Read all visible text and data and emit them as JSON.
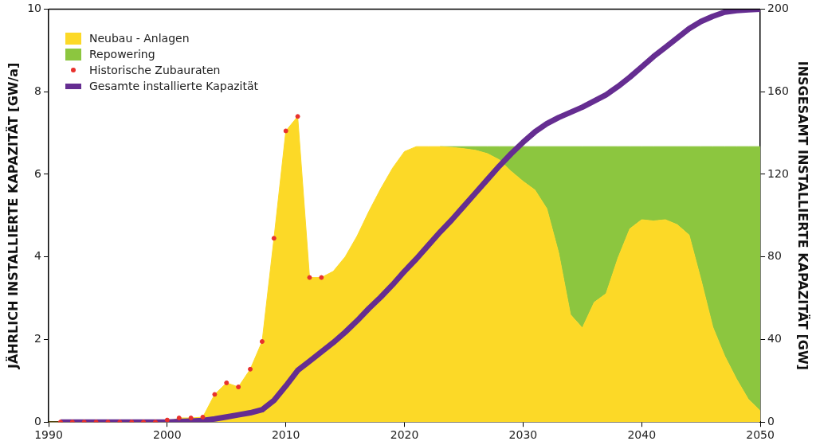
{
  "chart_data": {
    "type": "area",
    "stacked": true,
    "xlabel": null,
    "ylabel": "JÄHRLICH INSTALLIERTE KAPAZITÄT [GW/a]",
    "y2label": "INSGESAMT INSTALLIERTE KAPAZITÄT [GW]",
    "x": [
      1990,
      1991,
      1992,
      1993,
      1994,
      1995,
      1996,
      1997,
      1998,
      1999,
      2000,
      2001,
      2002,
      2003,
      2004,
      2005,
      2006,
      2007,
      2008,
      2009,
      2010,
      2011,
      2012,
      2013,
      2014,
      2015,
      2016,
      2017,
      2018,
      2019,
      2020,
      2021,
      2022,
      2023,
      2024,
      2025,
      2026,
      2027,
      2028,
      2029,
      2030,
      2031,
      2032,
      2033,
      2034,
      2035,
      2036,
      2037,
      2038,
      2039,
      2040,
      2041,
      2042,
      2043,
      2044,
      2045,
      2046,
      2047,
      2048,
      2049,
      2050
    ],
    "series": [
      {
        "name": "Neubau - Anlagen",
        "color": "#fcd927",
        "values": [
          0,
          0,
          0,
          0,
          0,
          0,
          0,
          0,
          0,
          0,
          0,
          0.1,
          0.1,
          0.12,
          0.67,
          0.95,
          0.85,
          1.28,
          1.95,
          4.45,
          7.05,
          7.4,
          3.5,
          3.5,
          3.65,
          4.0,
          4.5,
          5.1,
          5.65,
          6.15,
          6.55,
          6.67,
          6.67,
          6.67,
          6.65,
          6.62,
          6.58,
          6.5,
          6.35,
          6.07,
          5.83,
          5.62,
          5.17,
          4.1,
          2.6,
          2.28,
          2.9,
          3.11,
          3.97,
          4.68,
          4.9,
          4.87,
          4.9,
          4.78,
          4.53,
          3.45,
          2.3,
          1.6,
          1.04,
          0.55,
          0.27
        ]
      },
      {
        "name": "Repowering",
        "color": "#8cc63f",
        "values": [
          null,
          null,
          null,
          null,
          null,
          null,
          null,
          null,
          null,
          null,
          null,
          null,
          null,
          null,
          null,
          null,
          null,
          null,
          null,
          null,
          null,
          null,
          null,
          null,
          null,
          null,
          null,
          null,
          null,
          null,
          null,
          null,
          null,
          0,
          0.02,
          0.05,
          0.09,
          0.17,
          0.32,
          0.6,
          0.84,
          1.05,
          1.5,
          2.57,
          4.07,
          4.39,
          3.77,
          3.56,
          2.7,
          1.99,
          1.77,
          1.8,
          1.77,
          1.89,
          2.14,
          3.22,
          4.37,
          5.07,
          5.63,
          6.12,
          6.4
        ]
      },
      {
        "name": "Historische Zubauraten",
        "type": "scatter",
        "color": "#e8312d",
        "marker": "circle",
        "x": [
          1991,
          1992,
          1993,
          1994,
          1995,
          1996,
          1997,
          1998,
          1999,
          2000,
          2001,
          2002,
          2003,
          2004,
          2005,
          2006,
          2007,
          2008,
          2009,
          2010,
          2011,
          2012,
          2013
        ],
        "values": [
          0,
          0,
          0,
          0,
          0,
          0,
          0,
          0,
          0,
          0.05,
          0.1,
          0.1,
          0.12,
          0.67,
          0.95,
          0.85,
          1.28,
          1.95,
          4.45,
          7.05,
          7.4,
          3.5,
          3.5
        ]
      },
      {
        "name": "Gesamte installierte Kapazität",
        "type": "line",
        "axis": "y2",
        "color": "#652d91",
        "x": [
          1991,
          1992,
          1993,
          1994,
          1995,
          1996,
          1997,
          1998,
          1999,
          2000,
          2001,
          2002,
          2003,
          2004,
          2005,
          2006,
          2007,
          2008,
          2009,
          2010,
          2011,
          2012,
          2013,
          2014,
          2015,
          2016,
          2017,
          2018,
          2019,
          2020,
          2021,
          2022,
          2023,
          2024,
          2025,
          2026,
          2027,
          2028,
          2029,
          2030,
          2031,
          2032,
          2033,
          2034,
          2035,
          2036,
          2037,
          2038,
          2039,
          2040,
          2041,
          2042,
          2043,
          2044,
          2045,
          2046,
          2047,
          2048,
          2049,
          2050
        ],
        "values": [
          0,
          0,
          0,
          0,
          0,
          0,
          0,
          0,
          0,
          0,
          0.3,
          0.5,
          0.8,
          1.5,
          2.5,
          3.5,
          4.5,
          6,
          10.5,
          17.5,
          25,
          29.5,
          34,
          38.5,
          43.5,
          49,
          55,
          60.5,
          66.5,
          73,
          79,
          85.5,
          92,
          98,
          104.5,
          111,
          117.5,
          124,
          130,
          135.5,
          140.5,
          144.5,
          147.5,
          150,
          152.5,
          155.5,
          158.5,
          162.5,
          167,
          172,
          177,
          181.5,
          186,
          190.5,
          194,
          196.5,
          198.5,
          199.3,
          199.7,
          200
        ]
      }
    ],
    "xlim": [
      1990,
      2050
    ],
    "xticks": [
      1990,
      2000,
      2010,
      2020,
      2030,
      2040,
      2050
    ],
    "ylim": [
      0,
      10
    ],
    "yticks": [
      0,
      2,
      4,
      6,
      8,
      10
    ],
    "y2lim": [
      0,
      200
    ],
    "y2ticks": [
      0,
      40,
      80,
      120,
      160,
      200
    ],
    "grid": false,
    "legend": "top left"
  }
}
